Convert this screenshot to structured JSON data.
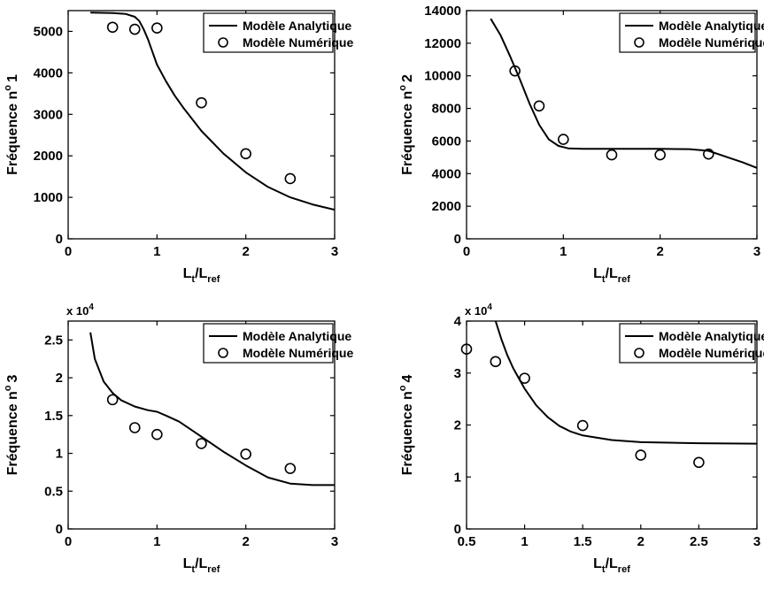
{
  "chart_data": [
    {
      "type": "line",
      "xlabel": "Lt/Lref",
      "xlabel_main": "L",
      "xlabel_sub1": "t",
      "xlabel_mid": "/L",
      "xlabel_sub2": "ref",
      "ylabel": "Fréquence n° 1",
      "ylabel_prefix": "Fréquence n",
      "ylabel_deg": "o",
      "ylabel_num": "1",
      "y_exponent": "",
      "xlim": [
        0,
        3
      ],
      "ylim": [
        0,
        5500
      ],
      "xticks": [
        0,
        1,
        2,
        3
      ],
      "xtick_labels": [
        "0",
        "1",
        "2",
        "3"
      ],
      "yticks": [
        0,
        1000,
        2000,
        3000,
        4000,
        5000
      ],
      "ytick_labels": [
        "0",
        "1000",
        "2000",
        "3000",
        "4000",
        "5000"
      ],
      "legend_position": "top-right",
      "series": [
        {
          "name": "Modèle Analytique",
          "style": "line",
          "x": [
            0.25,
            0.5,
            0.65,
            0.75,
            0.8,
            0.85,
            0.9,
            0.95,
            1.0,
            1.1,
            1.2,
            1.3,
            1.5,
            1.75,
            2.0,
            2.25,
            2.5,
            2.75,
            3.0
          ],
          "y": [
            5450,
            5440,
            5420,
            5350,
            5250,
            5050,
            4800,
            4500,
            4200,
            3800,
            3450,
            3150,
            2600,
            2050,
            1600,
            1250,
            1000,
            830,
            700
          ]
        },
        {
          "name": "Modèle Numérique",
          "style": "marker",
          "x": [
            0.5,
            0.75,
            1.0,
            1.5,
            2.0,
            2.5
          ],
          "y": [
            5100,
            5050,
            5080,
            3280,
            2050,
            1450
          ]
        }
      ]
    },
    {
      "type": "line",
      "xlabel": "Lt/Lref",
      "xlabel_main": "L",
      "xlabel_sub1": "t",
      "xlabel_mid": "/L",
      "xlabel_sub2": "ref",
      "ylabel": "Fréquence n° 2",
      "ylabel_prefix": "Fréquence n",
      "ylabel_deg": "o",
      "ylabel_num": "2",
      "y_exponent": "",
      "xlim": [
        0,
        3
      ],
      "ylim": [
        0,
        14000
      ],
      "xticks": [
        0,
        1,
        2,
        3
      ],
      "xtick_labels": [
        "0",
        "1",
        "2",
        "3"
      ],
      "yticks": [
        0,
        2000,
        4000,
        6000,
        8000,
        10000,
        12000,
        14000
      ],
      "ytick_labels": [
        "0",
        "2000",
        "4000",
        "6000",
        "8000",
        "10000",
        "12000",
        "14000"
      ],
      "legend_position": "top-right",
      "series": [
        {
          "name": "Modèle Analytique",
          "style": "line",
          "x": [
            0.25,
            0.35,
            0.45,
            0.55,
            0.65,
            0.75,
            0.85,
            0.95,
            1.05,
            1.2,
            1.5,
            2.0,
            2.3,
            2.5,
            2.7,
            2.85,
            3.0
          ],
          "y": [
            13500,
            12500,
            11200,
            9800,
            8300,
            7000,
            6100,
            5700,
            5550,
            5520,
            5520,
            5520,
            5500,
            5400,
            5000,
            4700,
            4350
          ]
        },
        {
          "name": "Modèle Numérique",
          "style": "marker",
          "x": [
            0.5,
            0.75,
            1.0,
            1.5,
            2.0,
            2.5
          ],
          "y": [
            10300,
            8150,
            6100,
            5150,
            5150,
            5200
          ]
        }
      ]
    },
    {
      "type": "line",
      "xlabel": "Lt/Lref",
      "xlabel_main": "L",
      "xlabel_sub1": "t",
      "xlabel_mid": "/L",
      "xlabel_sub2": "ref",
      "ylabel": "Fréquence n° 3",
      "ylabel_prefix": "Fréquence n",
      "ylabel_deg": "o",
      "ylabel_num": "3",
      "y_exponent": "x 10^4",
      "xlim": [
        0,
        3
      ],
      "ylim": [
        0,
        2.75
      ],
      "xticks": [
        0,
        1,
        2,
        3
      ],
      "xtick_labels": [
        "0",
        "1",
        "2",
        "3"
      ],
      "yticks": [
        0,
        0.5,
        1,
        1.5,
        2,
        2.5
      ],
      "ytick_labels": [
        "0",
        "0.5",
        "1",
        "1.5",
        "2",
        "2.5"
      ],
      "legend_position": "top-right",
      "series": [
        {
          "name": "Modèle Analytique",
          "style": "line",
          "x": [
            0.25,
            0.3,
            0.4,
            0.5,
            0.6,
            0.75,
            0.9,
            1.0,
            1.1,
            1.25,
            1.5,
            1.75,
            2.0,
            2.25,
            2.5,
            2.75,
            3.0
          ],
          "y": [
            2.6,
            2.25,
            1.95,
            1.8,
            1.7,
            1.62,
            1.57,
            1.55,
            1.5,
            1.42,
            1.22,
            1.02,
            0.84,
            0.68,
            0.6,
            0.58,
            0.58
          ]
        },
        {
          "name": "Modèle Numérique",
          "style": "marker",
          "x": [
            0.5,
            0.75,
            1.0,
            1.5,
            2.0,
            2.5
          ],
          "y": [
            1.71,
            1.34,
            1.25,
            1.13,
            0.99,
            0.8
          ]
        }
      ]
    },
    {
      "type": "line",
      "xlabel": "Lt/Lref",
      "xlabel_main": "L",
      "xlabel_sub1": "t",
      "xlabel_mid": "/L",
      "xlabel_sub2": "ref",
      "ylabel": "Fréquence n° 4",
      "ylabel_prefix": "Fréquence n",
      "ylabel_deg": "o",
      "ylabel_num": "4",
      "y_exponent": "x 10^4",
      "xlim": [
        0.5,
        3
      ],
      "ylim": [
        0,
        4
      ],
      "xticks": [
        0.5,
        1,
        1.5,
        2,
        2.5,
        3
      ],
      "xtick_labels": [
        "0.5",
        "1",
        "1.5",
        "2",
        "2.5",
        "3"
      ],
      "yticks": [
        0,
        1,
        2,
        3,
        4
      ],
      "ytick_labels": [
        "0",
        "1",
        "2",
        "3",
        "4"
      ],
      "legend_position": "top-right",
      "series": [
        {
          "name": "Modèle Analytique",
          "style": "line",
          "x": [
            0.75,
            0.8,
            0.85,
            0.9,
            0.95,
            1.0,
            1.1,
            1.2,
            1.3,
            1.4,
            1.5,
            1.75,
            2.0,
            2.5,
            3.0
          ],
          "y": [
            4.0,
            3.65,
            3.35,
            3.1,
            2.9,
            2.7,
            2.38,
            2.15,
            1.98,
            1.87,
            1.8,
            1.71,
            1.67,
            1.65,
            1.64
          ]
        },
        {
          "name": "Modèle Numérique",
          "style": "marker",
          "x": [
            0.5,
            0.75,
            1.0,
            1.5,
            2.0,
            2.5
          ],
          "y": [
            3.46,
            3.22,
            2.9,
            1.99,
            1.42,
            1.28
          ]
        }
      ]
    }
  ]
}
